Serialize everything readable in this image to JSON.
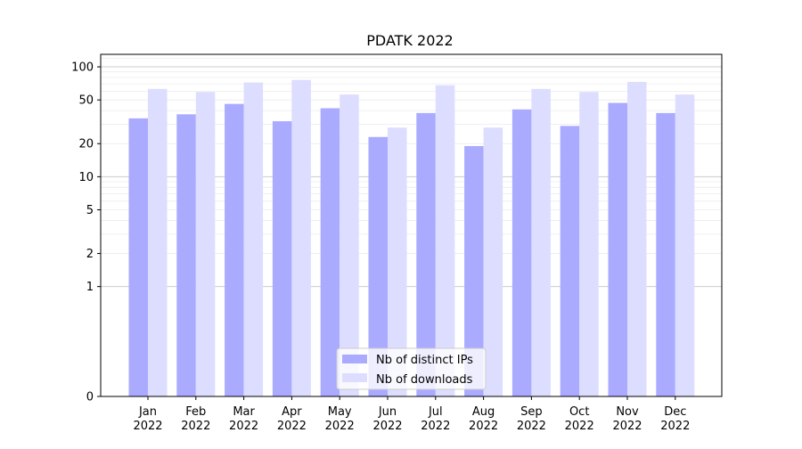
{
  "chart_data": {
    "type": "bar",
    "title": "PDATK 2022",
    "xlabel": "",
    "ylabel": "",
    "scale": "symlog",
    "ylim": [
      0,
      130
    ],
    "yticks": [
      0,
      1,
      2,
      5,
      10,
      20,
      50,
      100
    ],
    "ytick_labels": [
      "0",
      "1",
      "2",
      "5",
      "10",
      "20",
      "50",
      "100"
    ],
    "grid": true,
    "legend_position": "bottom-center",
    "categories": [
      {
        "month": "Jan",
        "year": "2022"
      },
      {
        "month": "Feb",
        "year": "2022"
      },
      {
        "month": "Mar",
        "year": "2022"
      },
      {
        "month": "Apr",
        "year": "2022"
      },
      {
        "month": "May",
        "year": "2022"
      },
      {
        "month": "Jun",
        "year": "2022"
      },
      {
        "month": "Jul",
        "year": "2022"
      },
      {
        "month": "Aug",
        "year": "2022"
      },
      {
        "month": "Sep",
        "year": "2022"
      },
      {
        "month": "Oct",
        "year": "2022"
      },
      {
        "month": "Nov",
        "year": "2022"
      },
      {
        "month": "Dec",
        "year": "2022"
      }
    ],
    "series": [
      {
        "name": "Nb of distinct IPs",
        "color": "#aaaaff",
        "values": [
          34,
          37,
          46,
          32,
          42,
          23,
          38,
          19,
          41,
          29,
          47,
          38
        ]
      },
      {
        "name": "Nb of downloads",
        "color": "#ddddff",
        "values": [
          63,
          59,
          72,
          76,
          56,
          28,
          68,
          28,
          63,
          59,
          73,
          56
        ]
      }
    ]
  }
}
